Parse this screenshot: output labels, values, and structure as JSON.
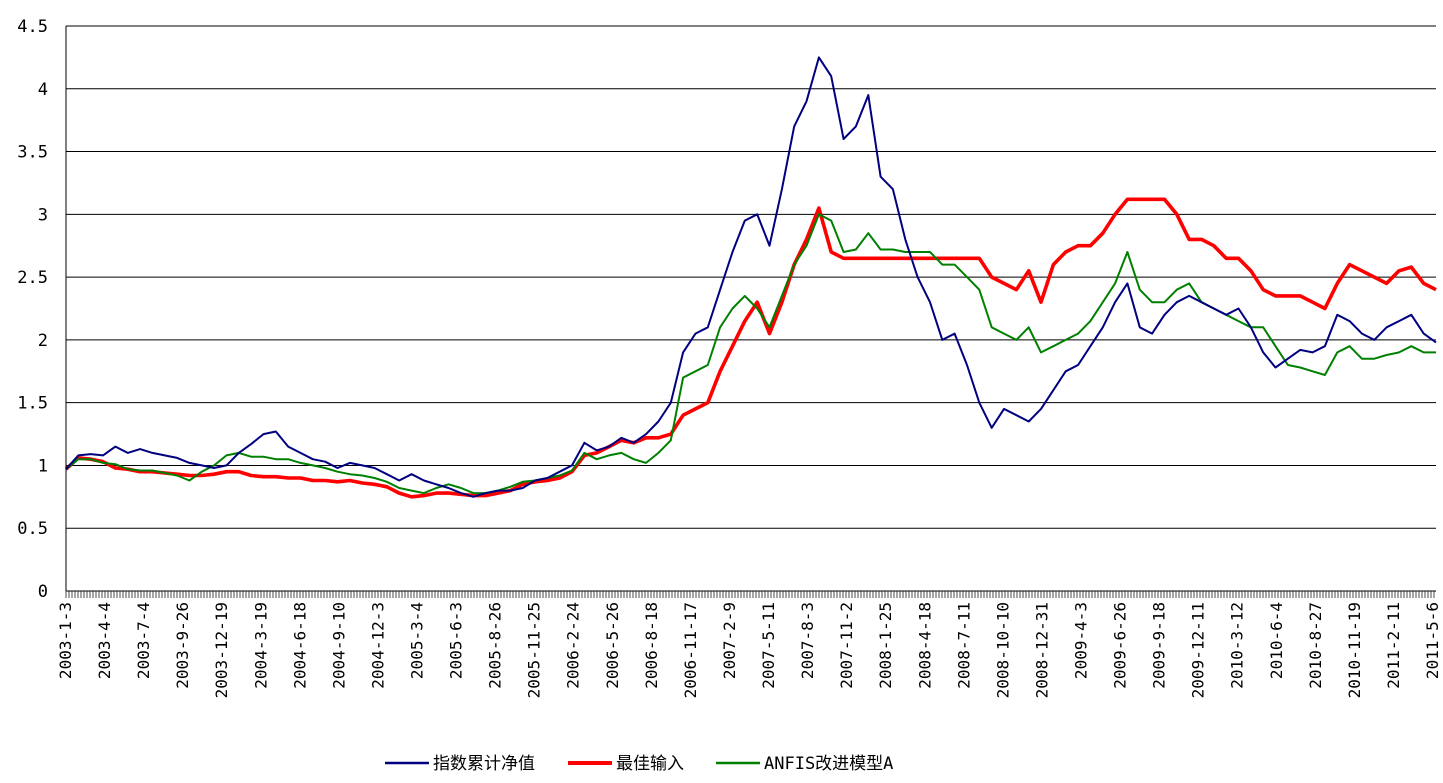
{
  "chart_data": {
    "type": "line",
    "title": "",
    "xlabel": "",
    "ylabel": "",
    "ylim": [
      0,
      4.5
    ],
    "y_ticks": [
      "0",
      "0.5",
      "1",
      "1.5",
      "2",
      "2.5",
      "3",
      "3.5",
      "4",
      "4.5"
    ],
    "grid": "horizontal",
    "legend_position": "bottom",
    "x_ticks": [
      "2003-1-3",
      "2003-4-4",
      "2003-7-4",
      "2003-9-26",
      "2003-12-19",
      "2004-3-19",
      "2004-6-18",
      "2004-9-10",
      "2004-12-3",
      "2005-3-4",
      "2005-6-3",
      "2005-8-26",
      "2005-11-25",
      "2006-2-24",
      "2006-5-26",
      "2006-8-18",
      "2006-11-17",
      "2007-2-9",
      "2007-5-11",
      "2007-8-3",
      "2007-11-2",
      "2008-1-25",
      "2008-4-18",
      "2008-7-11",
      "2008-10-10",
      "2008-12-31",
      "2009-4-3",
      "2009-6-26",
      "2009-9-18",
      "2009-12-11",
      "2010-3-12",
      "2010-6-4",
      "2010-8-27",
      "2010-11-19",
      "2011-2-11",
      "2011-5-6"
    ],
    "series": [
      {
        "name": "指数累计净值",
        "color": "#000080",
        "values": [
          0.97,
          1.08,
          1.09,
          1.08,
          1.15,
          1.1,
          1.13,
          1.1,
          1.08,
          1.06,
          1.02,
          1.0,
          0.98,
          1.0,
          1.1,
          1.17,
          1.25,
          1.27,
          1.15,
          1.1,
          1.05,
          1.03,
          0.98,
          1.02,
          1.0,
          0.98,
          0.93,
          0.88,
          0.93,
          0.88,
          0.85,
          0.82,
          0.78,
          0.75,
          0.78,
          0.8,
          0.8,
          0.82,
          0.88,
          0.9,
          0.95,
          1.0,
          1.18,
          1.12,
          1.15,
          1.22,
          1.18,
          1.25,
          1.35,
          1.5,
          1.9,
          2.05,
          2.1,
          2.4,
          2.7,
          2.95,
          3.0,
          2.75,
          3.2,
          3.7,
          3.9,
          4.25,
          4.1,
          3.6,
          3.7,
          3.95,
          3.3,
          3.2,
          2.8,
          2.5,
          2.3,
          2.0,
          2.05,
          1.8,
          1.5,
          1.3,
          1.45,
          1.4,
          1.35,
          1.45,
          1.6,
          1.75,
          1.8,
          1.95,
          2.1,
          2.3,
          2.45,
          2.1,
          2.05,
          2.2,
          2.3,
          2.35,
          2.3,
          2.25,
          2.2,
          2.25,
          2.1,
          1.9,
          1.78,
          1.85,
          1.92,
          1.9,
          1.95,
          2.2,
          2.15,
          2.05,
          2.0,
          2.1,
          2.15,
          2.2,
          2.05,
          1.98
        ]
      },
      {
        "name": "最佳输入",
        "color": "#ff0000",
        "values": [
          0.97,
          1.06,
          1.05,
          1.03,
          0.98,
          0.97,
          0.95,
          0.95,
          0.94,
          0.93,
          0.92,
          0.92,
          0.93,
          0.95,
          0.95,
          0.92,
          0.91,
          0.91,
          0.9,
          0.9,
          0.88,
          0.88,
          0.87,
          0.88,
          0.86,
          0.85,
          0.83,
          0.78,
          0.75,
          0.76,
          0.78,
          0.78,
          0.77,
          0.76,
          0.76,
          0.78,
          0.8,
          0.85,
          0.87,
          0.88,
          0.9,
          0.95,
          1.08,
          1.1,
          1.15,
          1.2,
          1.18,
          1.22,
          1.22,
          1.25,
          1.4,
          1.45,
          1.5,
          1.75,
          1.95,
          2.15,
          2.3,
          2.05,
          2.3,
          2.6,
          2.8,
          3.05,
          2.7,
          2.65,
          2.65,
          2.65,
          2.65,
          2.65,
          2.65,
          2.65,
          2.65,
          2.65,
          2.65,
          2.65,
          2.65,
          2.5,
          2.45,
          2.4,
          2.55,
          2.3,
          2.6,
          2.7,
          2.75,
          2.75,
          2.85,
          3.0,
          3.12,
          3.12,
          3.12,
          3.12,
          3.0,
          2.8,
          2.8,
          2.75,
          2.65,
          2.65,
          2.55,
          2.4,
          2.35,
          2.35,
          2.35,
          2.3,
          2.25,
          2.45,
          2.6,
          2.55,
          2.5,
          2.45,
          2.55,
          2.58,
          2.45,
          2.4
        ]
      },
      {
        "name": "ANFIS改进模型A",
        "color": "#008000",
        "values": [
          0.97,
          1.05,
          1.05,
          1.02,
          1.01,
          0.97,
          0.96,
          0.96,
          0.94,
          0.92,
          0.88,
          0.95,
          1.0,
          1.08,
          1.1,
          1.07,
          1.07,
          1.05,
          1.05,
          1.02,
          1.0,
          0.98,
          0.95,
          0.93,
          0.92,
          0.9,
          0.87,
          0.82,
          0.8,
          0.78,
          0.82,
          0.85,
          0.82,
          0.78,
          0.78,
          0.8,
          0.83,
          0.87,
          0.88,
          0.9,
          0.92,
          0.96,
          1.1,
          1.05,
          1.08,
          1.1,
          1.05,
          1.02,
          1.1,
          1.2,
          1.7,
          1.75,
          1.8,
          2.1,
          2.25,
          2.35,
          2.25,
          2.1,
          2.35,
          2.6,
          2.75,
          3.0,
          2.95,
          2.7,
          2.72,
          2.85,
          2.72,
          2.72,
          2.7,
          2.7,
          2.7,
          2.6,
          2.6,
          2.5,
          2.4,
          2.1,
          2.05,
          2.0,
          2.1,
          1.9,
          1.95,
          2.0,
          2.05,
          2.15,
          2.3,
          2.45,
          2.7,
          2.4,
          2.3,
          2.3,
          2.4,
          2.45,
          2.3,
          2.25,
          2.2,
          2.15,
          2.1,
          2.1,
          1.95,
          1.8,
          1.78,
          1.75,
          1.72,
          1.9,
          1.95,
          1.85,
          1.85,
          1.88,
          1.9,
          1.95,
          1.9,
          1.9
        ]
      }
    ]
  }
}
